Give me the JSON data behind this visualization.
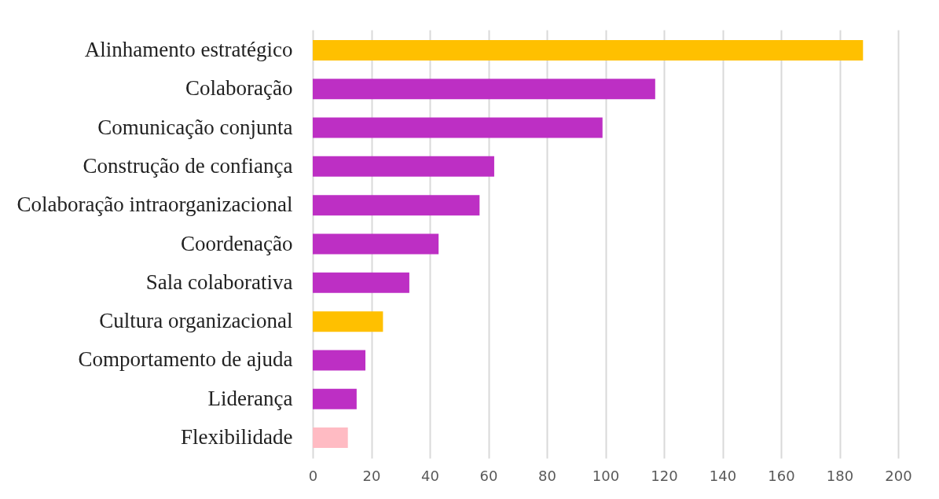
{
  "chart_data": {
    "type": "bar",
    "orientation": "horizontal",
    "categories": [
      "Alinhamento estratégico",
      "Colaboração",
      "Comunicação conjunta",
      "Construção de confiança",
      "Colaboração intraorganizacional",
      "Coordenação",
      "Sala colaborativa",
      "Cultura organizacional",
      "Comportamento de ajuda",
      "Liderança",
      "Flexibilidade"
    ],
    "values": [
      188,
      117,
      99,
      62,
      57,
      43,
      33,
      24,
      18,
      15,
      12
    ],
    "colors": [
      "#ffc000",
      "#bd2fc4",
      "#bd2fc4",
      "#bd2fc4",
      "#bd2fc4",
      "#bd2fc4",
      "#bd2fc4",
      "#ffc000",
      "#bd2fc4",
      "#bd2fc4",
      "#ffbbc3"
    ],
    "xlim": [
      0,
      200
    ],
    "xticks": [
      0,
      20,
      40,
      60,
      80,
      100,
      120,
      140,
      160,
      180,
      200
    ],
    "grid": "x"
  }
}
